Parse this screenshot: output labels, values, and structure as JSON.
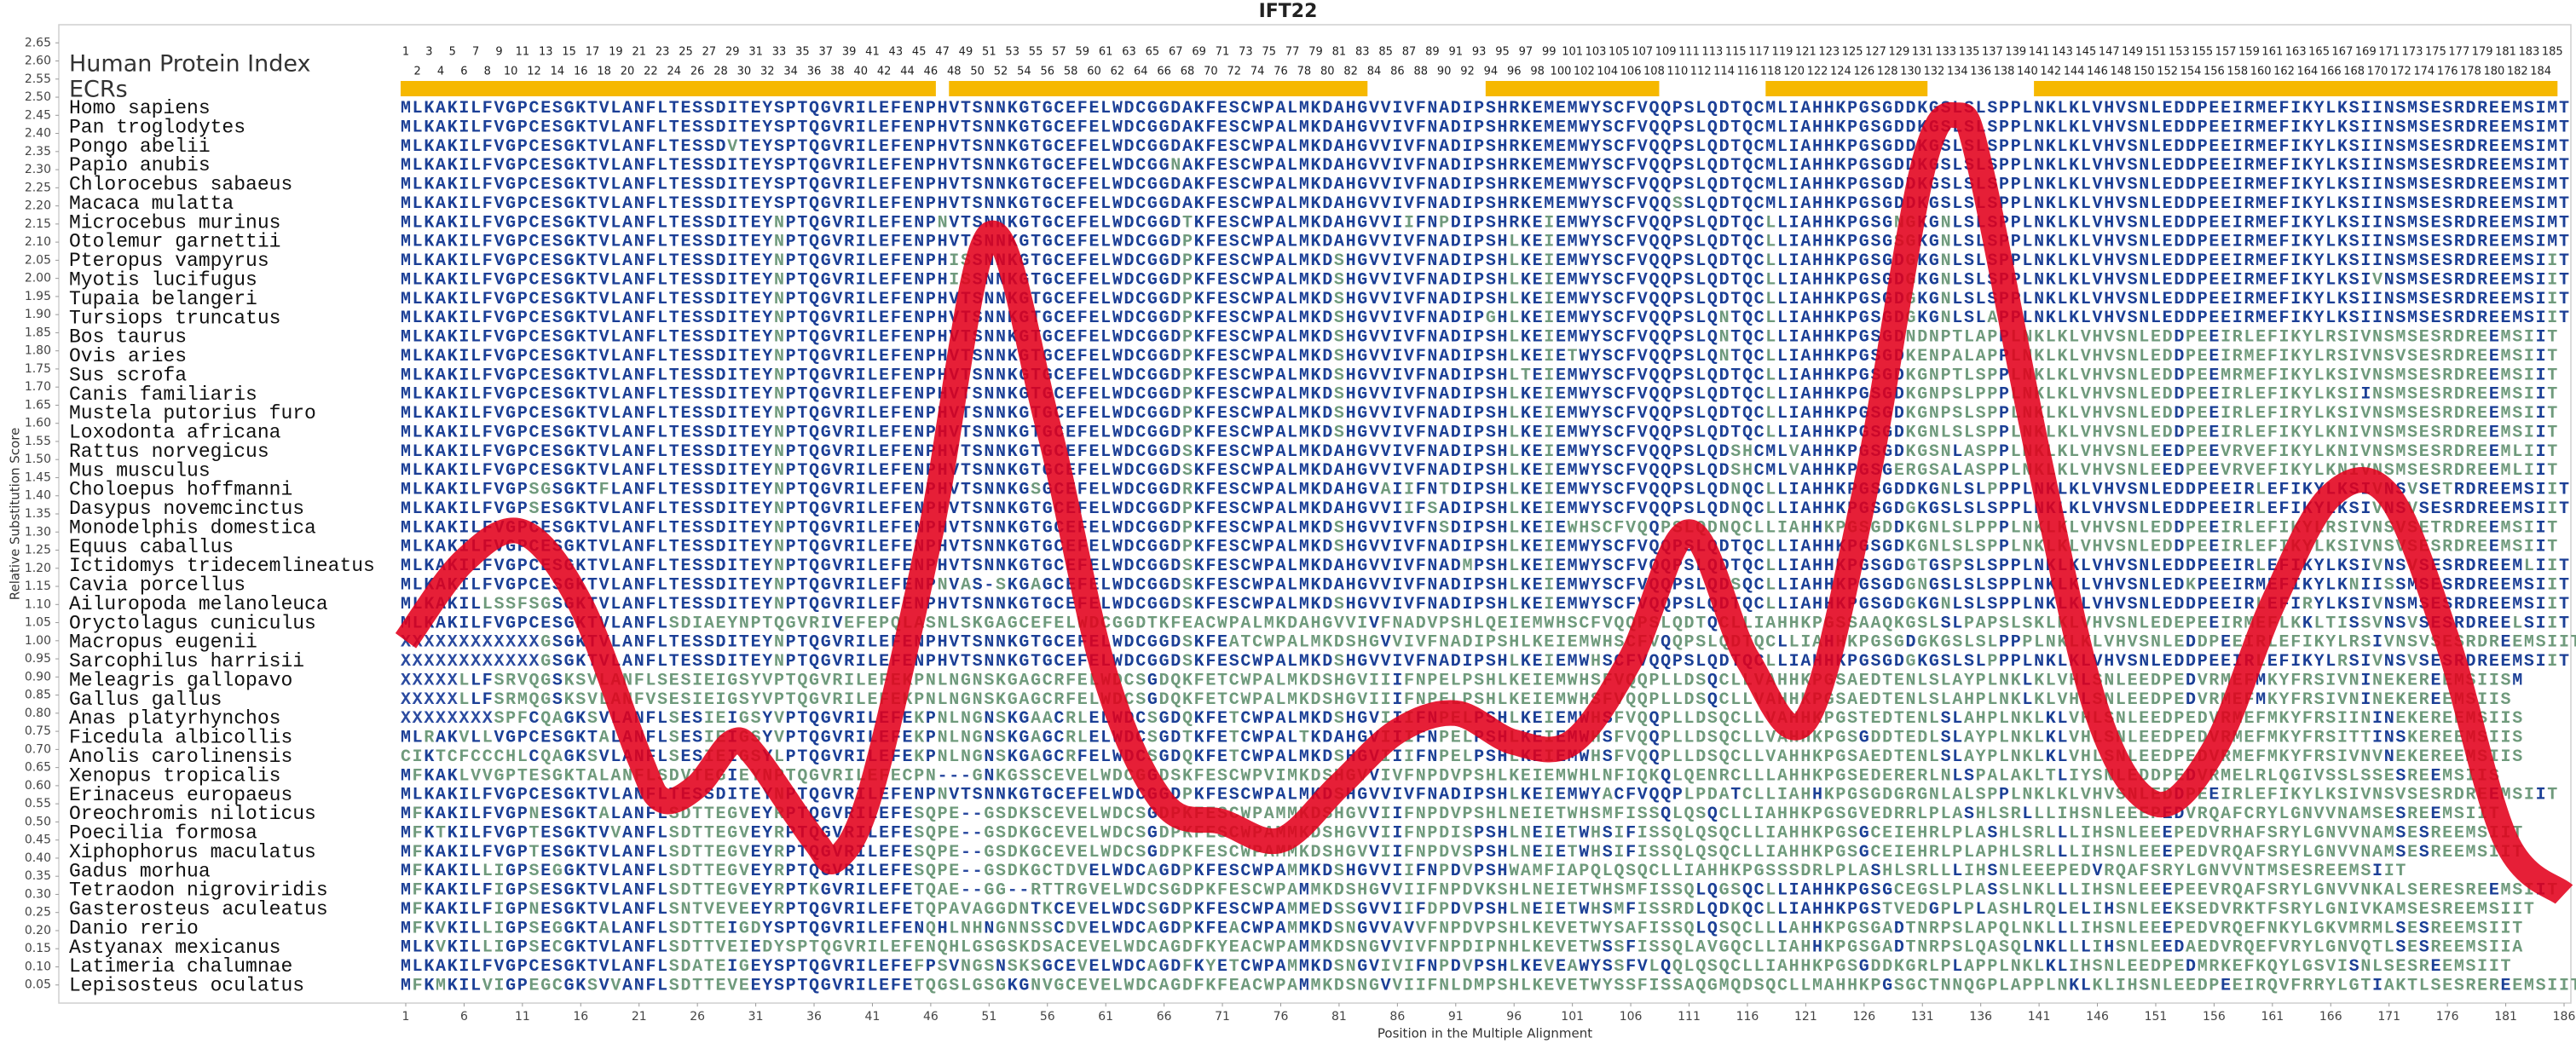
{
  "chart_data": {
    "type": "line",
    "title": "IFT22",
    "x_label": "Position in the Multiple Alignment",
    "y_label": "Relative Substitution Score",
    "index_label": "Human Protein Index",
    "ecr_label": "ECRs",
    "ecr_color": "#f6b800",
    "ecrs": [
      {
        "start": 1,
        "end": 46
      },
      {
        "start": 48,
        "end": 83
      },
      {
        "start": 94,
        "end": 108
      },
      {
        "start": 118,
        "end": 131
      },
      {
        "start": 141,
        "end": 185
      }
    ],
    "protein_index": [
      1,
      2,
      3,
      4,
      5,
      6,
      7,
      8,
      9,
      10,
      11,
      12,
      13,
      14,
      15,
      16,
      17,
      18,
      19,
      20,
      21,
      22,
      23,
      24,
      25,
      26,
      27,
      28,
      29,
      30,
      31,
      32,
      33,
      34,
      35,
      36,
      37,
      38,
      39,
      40,
      41,
      42,
      43,
      44,
      45,
      46,
      47,
      48,
      49,
      50,
      51,
      52,
      53,
      54,
      55,
      56,
      57,
      58,
      59,
      60,
      61,
      62,
      63,
      64,
      65,
      66,
      67,
      68,
      69,
      70,
      71,
      72,
      73,
      74,
      75,
      76,
      77,
      78,
      79,
      80,
      81,
      82,
      83,
      84,
      85,
      86,
      87,
      88,
      89,
      90,
      91,
      92,
      93,
      94,
      95,
      96,
      97,
      98,
      99,
      100,
      101,
      102,
      103,
      104,
      105,
      106,
      107,
      108,
      109,
      110,
      111,
      112,
      113,
      114,
      115,
      116,
      117,
      118,
      119,
      120,
      121,
      122,
      123,
      124,
      125,
      126,
      127,
      128,
      129,
      130,
      131,
      132,
      133,
      134,
      135,
      136,
      137,
      138,
      139,
      140,
      141,
      142,
      143,
      144,
      145,
      146,
      147,
      148,
      149,
      150,
      151,
      152,
      153,
      154,
      155,
      156,
      157,
      158,
      159,
      160,
      161,
      162,
      163,
      164,
      165,
      166,
      167,
      168,
      169,
      170,
      171,
      172,
      173,
      174,
      175,
      176,
      177,
      178,
      179,
      180,
      181,
      182,
      183,
      184,
      185
    ],
    "species": [
      "Homo sapiens",
      "Pan troglodytes",
      "Pongo abelii",
      "Papio anubis",
      "Chlorocebus sabaeus",
      "Macaca mulatta",
      "Microcebus murinus",
      "Otolemur garnettii",
      "Pteropus vampyrus",
      "Myotis lucifugus",
      "Tupaia belangeri",
      "Tursiops truncatus",
      "Bos taurus",
      "Ovis aries",
      "Sus scrofa",
      "Canis familiaris",
      "Mustela putorius furo",
      "Loxodonta africana",
      "Rattus norvegicus",
      "Mus musculus",
      "Choloepus hoffmanni",
      "Dasypus novemcinctus",
      "Monodelphis domestica",
      "Equus caballus",
      "Ictidomys tridecemlineatus",
      "Cavia porcellus",
      "Ailuropoda melanoleuca",
      "Oryctolagus cuniculus",
      "Macropus eugenii",
      "Sarcophilus harrisii",
      "Meleagris gallopavo",
      "Gallus gallus",
      "Anas platyrhynchos",
      "Ficedula albicollis",
      "Anolis carolinensis",
      "Xenopus tropicalis",
      "Erinaceus europaeus",
      "Oreochromis niloticus",
      "Poecilia formosa",
      "Xiphophorus maculatus",
      "Gadus morhua",
      "Tetraodon nigroviridis",
      "Gasterosteus aculeatus",
      "Danio rerio",
      "Astyanax mexicanus",
      "Latimeria chalumnae",
      "Lepisosteus oculatus"
    ],
    "sequences": [
      "MLKAKILFVGPCESGKTVLANFLTESSDITEYSPTQGVRILEFENPHVTSNNKGTGCEFELWDCGGDAKFESCWPALMKDAHGVVIVFNADIPSHRKEMEMWYSCFVQQPSLQDTQCMLIAHHKPGSGDDKGSLSLSPPLNKLKLVHVSNLEDDPEEIRMEFIKYLKSIINSMSESRDREEMSIMT",
      "MLKAKILFVGPCESGKTVLANFLTESSDITEYSPTQGVRILEFENPHVTSNNKGTGCEFELWDCGGDAKFESCWPALMKDAHGVVIVFNADIPSHRKEMEMWYSCFVQQPSLQDTQCMLIAHHKPGSGDDKGSLSLSPPLNKLKLVHVSNLEDDPEEIRMEFIKYLKSIINSMSESRDREEMSIMT",
      "MLKAKILFVGPCESGKTVLANFLTESSDVTEYSPTQGVRILEFENPHVTSNNKGTGCEFELWDCGGDAKFESCWPALMKDAHGVVIVFNADIPSHRKEMEMWYSCFVQQPSLQDTQCMLIAHHKPGSGDDKGSLSLSPPLNKLKLVHVSNLEDDPEEIRMEFIKYLKSIINSMSESRDREEMSIMT",
      "MLKAKILFVGPCESGKTVLANFLTESSDITEYSPTQGVRILEFENPHVTSNNKGTGCEFELWDCGGNAKFESCWPALMKDAHGVVIVFNADIPSHRKEMEMWYSCFVQQPSLQDTQCMLIAHHKPGSGDDKGSLSLSPPLNKLKLVHVSNLEDDPEEIRMEFIKYLKSIINSMSESRDREEMSIMT",
      "MLKAKILFVGPCESGKTVLANFLTESSDITEYSPTQGVRILEFENPHVTSNNKGTGCEFELWDCGGDAKFESCWPALMKDAHGVVIVFNADIPSHRKEMEMWYSCFVQQPSLQDTQCMLIAHHKPGSGDDKGSLSLSPPLNKLKLVHVSNLEDDPEEIRMEFIKYLKSIINSMSESRDREEMSIMT",
      "MLKAKILFVGPCESGKTVLANFLTESSDITEYSPTQGVRILEFENPHVTSNNKGTGCEFELWDCGGDAKFESCWPALMKDAHGVVIVFNADIPSHRKEMEMWYSCFVQQSSLQDTQCMLIAHHKPGSGDDKGSLSLSPPLNKLKLVHVSNLEDDPEEIRMEFIKYLKSIINSMSESRDREEMSIMT",
      "MLKAKILFVGPCESGKTVLANFLTESSDITEYNPTQGVRILEFENPNVTSNNKGTGCEFELWDCGGDTKFESCWPALMKDAHGVVIIFNPDIPSHRKEIEMWYSCFVQQPSLQDTQCLLIAHHKPGSGNGKGNLSLSPPLNKLKLVHVSNLEDDPEEIRMEFIKYLKSIINSMSESRDREEMSIMT",
      "MLKAKILFVGPCESGKTVLANFLTESSDITEYNPTQGVRILEFENPHVTSNNKGTGCEFELWDCGGDPKFESCWPALMKDAHGVVIVFNADIPSHLKEIEMWYSCFVQQPSLQDTQCLLIAHHKPGSGSGKGNLSLSPPLNKLKLVHVSNLEDDPEEIRMEFIKYLKSIINSMSESRDREEMSIMT",
      "MLKAKILFVGPCESGKTVLANFLTESSDITEYNPTQGVRILEFENPHISSNNKGTGCEFELWDCGGDPKFESCWPALMKDSHGVVIVFNADIPSHLKEIEMWYSCFVQQPSLQDTQCLLIAHHKPGSGDGKGNLSLSPPLNKLKLVHVSNLEDDPEEIRMEFIKYLKSIINSMSESRDREEMSIIT",
      "MLKAKILFVGPCESGKTVLANFLTESSDITEYNPTQGVRILEFENPHISSNNKGTGCEFELWDCGGDPKFESCWPALMKDSHGVVIVFNADIPSHLKEIEMWYSCFVQQPSLQDTQCLLIAHHKPGSGDGKGNLSLSPPLNKLKLVHVSNLEDDPEEIRMEFIKYLKSIVNSMSESRDREEMSIIT",
      "MLKAKILFVGPCESGKTVLANFLTESSDITEYNPTQGVRILEFENPHVTSNNKGTGCEFELWDCGGDPKFESCWPALMKDSHGVVIVFNADIPSHLKEIEMWYSCFVQQPSLQDTQCLLIAHHKPGSGDGKGNLSLSPPLNKLKLVHVSNLEDDPEEIRMEFIKYLKSIINSMSESRDREEMSIIT",
      "MLKAKILFVGPCESGKTVLANFLTESSDITEYNPTQGVRILEFENPHVTSNNKGTGCEFELWDCGGDPKFESCWPALMKDSHGVVIVFNADIPGHLKEIEMWYSCFVQQPSLQNTQCLLIAHHKPGSGDGKGNLSLAPPLNKLKLVHVSNLEDDPEEIRMEFIKYLKSIINSMSESRDREEMSIIT",
      "MLKAKILFVGPCESGKTVLANFLTESSDITEYNPTQGVRILEFENPHVTSNNKGTGCEFELWDCGGDPKFESCWPALMKDSHGVVIVFNADIPSHLKEIEMWYSCFVQQPSLQNTQCLLIAHHKPGSGDNDNPTLAPPLNKLKLVHVSNLEDDPEEIRLEFIKYLRSIVNSMSESRDREEMSIIT",
      "MLKAKILFVGPCESGKTVLANFLTESSDITEYNPTQGVRILEFENPHVTSNNKGTGCEFELWDCGGDPKFESCWPALMKDSHGVVIVFNADIPSHLKEIETWYSCFVQQPSLQNTQCLLIAHHKPGSGDKENPALAPPLNKLKLVHVSNLEDDPEEIRMEFIKYLRSIVNSVSESRDREEMSIIT",
      "MLKAKILFVGPCESGKTVLANFLTESSDITEYNPTQGVRILEFENPHVTSNNKGTGCEFELWDCGGDPKFESCWPALMKDSHGVVIVFNADIPSHLTEIEMWYSCFVQQPSLQDTQCLLIAHHKPGSGDKGNPTLSPPLNKLKLVHVSNLEDDPEEMRMEFIKYLKSIVNSMSESRDREEMSIIT",
      "MLKAKILFVGPCESGKTVLANFLTESSDITEYNPTQGVRILEFENPHVTSNNKGTGCEFELWDCGGDPKFESCWPALMKDSHGVVIVFNADIPSHLKEIEMWYSCFVQQPSLQDTQCLLIAHHKPGSGDKGNPSLPPPLNKLKLVHVSNLEDDPEEIRLEFIKYLKSIINSMSESRDREEMSIIT",
      "MLKAKILFVGPCESGKTVLANFLTESSDITEYNPTQGVRILEFENPHVTSNNKGTGCEFELWDCGGDPKFESCWPALMKDSHGVVIVFNADIPSHLKEIEMWYSCFVQQPSLQDTQCLLIAHHKPGSGDKGNPSLSPPLNKLKLVHVSNLEDDPEEIRLEFIRYLKSIVNSMSESRDREEMSIIT",
      "MLKAKILFVGPCESGKTVLANFLTESSDITEYNPTQGVRILEFENPHVTSNNKGTGCEFELWDCGGDPKFESCWPALMKDSHGVVIVFNADIPSHLKEIEMWYSCFVQQPSLQDTQCLLIAHHKPGSGDKGNLSLSPPLNKLKLVHVSNLEDDPEEIRLEFIKYLKNIVNSMSESRDREEMSIIT",
      "MLKAKILFVGPCESGKTVLANFLTESSDITEYNPTQGVRILEFENPHVTSNNKGTGCEFELWDCGGDSKFESCWPALMKDAHGVVIVFNADIPSHLKEIEMWYSCFVQQPSLQDSHCMLVAHHKPGSGDKGSNLASPPLNKLKLVHVSNLEEDPEEVRVEFIKYLKNIVNSMSESRDREEMLIIT",
      "MLKAKILFVGPCESGKTVLANFLTESSDITEYNPTQGVRILEFENPHVTSNNKGTGCEFELWDCGGDSKFESCWPALMKDAHGVVIVFNADIPSHLKEIEMWYSCFVQQPSLQDSHCMLVAHHKPGSGERGSALASPPLNKLKLVHVSNLEEDPEEVRVEFIKYLKNIVNSMSESRDREEMLIIT",
      "MLKAKILFVGPSGSGKTFLANFLTESSDITEYNPTQGVRILEFENPHVTSNNKGSGCEFELWDCGGDRKFESCWPALMKDAHGVAIIFNTDIPSHLKEIEMWYSCFVQQPSLQDNQCLLIAHHKPGSGDDKGNLSLPPPLNKLKLVHVSNLEDDPEEIRLEFIKYLKSIVNSVSETRDREEMSIIT",
      "MLKAKILFVGPSESGKTVLANFLTESSDITEYNPTQGVRILEFENPHVTSNNKGTGCEFELWDCGGDPKFESCWPALMKDAHGVVIIFSADIPSHLKEIEMWYSCFVQQPSLQDNQCLLIAHHKPGSGDGKGSLSLSPPLNKLKLVHVSNLEDDPEEIRLEFIKYLKSIVNSVSESRDREEMSIIT",
      "MLKAKILFVGPCESGKTVLANFLTESSDITEYNPTQGVRILEFENPHVTSNNKGTGCEFELWDCGGDPKFESCWPALMKDSHGVVIVFNSDIPSHLKEIEWHSCFVQQPSLQDNQCLLIAHHKPGSGDDKGNLSLPPPLNKLKLVHVSNLEDDPEEIRLEFIKYLRSIVNSVSETRDREEMSIIT",
      "MLKAKILFVGPCESGKTVLANFLTESSDITEYNPTQGVRILEFENPHVTSNNKGTGCEFELWDCGGDPKFESCWPALMKDSHGVVIVFNADIPSHLKEIEMWYSCFVQQPSLQDTQCLLIAHHKPGSGDKGNLSLSPPLNKLKLVHVSNLEDDPEEIRLEFIKYLKSIVNSVSESRDREEMSIIT",
      "MLKAKILFVGPCESGKTVLANFLTESSDITEYNPTQGVRILEFENPHVTSNNKGTGCEFELWDCGGDSKFESCWPALMKDAHGVVIVFNADMPSHLKEIEMWYSCFVQQPSLQDTQCLLIAHHKPGSGDGTGSPSLSPPLNKLKLVHVSNLEDDPEEIRLEFIKYLKSIVNSVSESRDREEMLIIT",
      "MLKAKILFVGPCESGKTVLANFLTESSDITEYNPTQGVRILEFENPNVAS-SKGAGCEFELWDCGGDSKFESCWPALMKDAHGVVIVFNADIPSHLKEIEMWYSCFVQQPSLQDSQCLLIAHHKPGSGDGNGSLSLSPPLNKLKLVHVSNLEDKPEEIRMEFIKYLKNIISSMSESRDREEMSIIT",
      "MLKAKILLSSFSGSGKTVLANFLTESSDITEYNPTQGVRILEFENPHVTSNNKGTGCEFELWDCGGDSKFESCWPALMKDSHGVVIVFNADIPSHLKEIEMWYSCFVQQPSLQDTQCLLIAHHKPGSGDGKGNLSLSPPLNKLKLVHVSNLEDDPEEIRLEFIRYLKSIVNSMSESRDREEMSIIT",
      "MLKAKILFVGPCESGKTVLANFLSDIAEYNPTQGVRIVEFEPQLASNLSKGAGCEFELWDCGGDTKFEACWPALMKDAHGVVIVFNADVPSHLQEIEMWHSCFVQQPSLQDTQCLLIAHHKPGSSAAQKGSLSLPAPSLSKLKLVHVSNLEDEPEEIRMEFLKKLTISSVNSVSESRDREELSIIT",
      "XXXXXXXXXXXXGSGKTVLANFLTESSDITEYNPTQGVRILEFENPHVTSNNKGTGCEFELWDCGGDSKFEATCWPALMKDSHGVVIVFNADIPSHLKEIEMWHSCFVQQPSLQDTQCLLIAHHKPGSGDGKGSLSLPPPLNKLKLVHVSNLEDDPEEIRLEFIKYLRSIVNSVSESRDREEMSIIT",
      "XXXXXXXXXXXXGSGKTVLANFLTESSDITEYNPTQGVRILEFENPHVTSNNKGTGCEFELWDCGGDSKFESCWPALMKDSHGVVIVFNADIPSHLKEIEMWHSCFVQQPSLQDTQCLLIAHHKPGSGDGKGSLSLPPPLNKLKLVHVSNLEDDPEEIRLEFIKYLRSIVNSVSESRDREEMSIIT",
      "XXXXXLLFSRVQGSKSVLANFLSESIEIGSYVPTQGVRILEFEKPNLNGNSKGAGCRFELWDCSGDQKFETCWPALMKDSHGVIIIFNPELPSHLKEIEMWHSFVQQPLLDSQCLLVAHHKPGSAEDTENLSLAYPLNKLKLVHLSNLEEDPEDVRMEFMKYFRSIVNINEKEREEMSIISM",
      "XXXXXLLFSRMQGSKSVLANFVSESIEIGSYVPTQGVRILEFEKPNLNGNSKGAGCRFELWDCSGDQKFETCWPALMKDSHGVIIIFNPELPSHLKEIEMWHSFVQQPLLDSQCLLVAHHKPGSAEDTENLSLAHPLNKLKLVHLSNLEEDPEDVRMEFMKYFRSIVNINEKEREEMSIIS",
      "XXXXXXXXSPFCQAGKSVLANFLSESIEIGSYVPTQGVRILEFEKPNLNGNSKGAACRLELWDCSGDQKFETCWPALMKDSHGVIIIFNPELPSHLKEIEMWHSFVQQPLLDSQCLLVAHHKPGSTEDTENLSLAHPLNKLKLVHLSNLEEDPEDVRMEFMKYFRSIININEKEREEMSIIS",
      "MLRAKVLLVGPCESGKTALANFLSESIEIGSYVPTQGVRILEFEKPNLNGNSKGAGCRLELWDCSGDTKFETCWPALTKDAHGVIIIFNPELPSHLKEIEMWHSFVQQPLLDSQCLLVAHHKPGSGDDTEDLSLAYPLNKLKLVHLSNLEEDPEDVRMEFMKYFRSITTINSKEREEMSIIS",
      "CIKTCFCCCHLCQAGKSVLANFLSESIEIGSYLPTQGVRILEFEKPNLNGNSKGAGCRFELWDCSGDQKFETCWPALMKDSHGVIIIFNPELPSHLKEIEMWHSFVQQPLLDSQCLLVAHHKPGSAEDTENLSLAYPLNKLKLVHLSNLEEDPEDVRMEFMKYFRSIVNVNEKEREEMSIIS",
      "MFKAKLVVGPTESGKTALANFLSDVTEGIEYNPTQGVRILEFECPN---GNKGSSCEVELWDCGGDSKFESCWPVIMKDSHGVVIVFNPDVPSHLKEIEMWHLNFIQKQLQENRCLLLAHHKPGSEDERERLNLSPALAKLTLIYSNLEDDPEDVRMELRLQGIVSSLSSESREEMSIIS",
      "MLKAKILFVGPCESGKTVLANFLTESSDITEYNPTQGVRILEFENPNVTSNNKGTGCEFELWDCGGDPKFESCWPALMKDSHGVVIVFNADIPSHLKEIEMWYACFVQQPLPDATCLLIAHHKPGSGDGRGNLALSPPLNKLKLVHVSNLEDDPEEIRLEFIKYLKSIVNSVSESRDREEMSIIT",
      "MFKAKILFVGPNESGKTALANFLSDTTEGVEYRPTQGVRILEFESQPE--GSDKSCEVELWDCSGDPKFESCWPAMMKDSHGVVIIFNPDVPSHLNEIETWHSMFISSQLQSQCLLIAHHKPGSGVEDRRLPLASHLSRLLLIHSNLEEEPEDVRQAFCRYLGNVVNAMSESREEMSIIT",
      "MFKTKILFVGPTESGKTVVANFLSDTTEGVEYRPTQGVRILEFESQPE--GSDKGCEVELWDCSGDPKFESCWPAMMKDSHGVVIIFNPDISPSHLNEIETWHSIFISSQLQSQCLLIAHHKPGSGCEIEHRLPLASHLSRLLLIHSNLEEEPEDVRHAFSRYLGNVVNAMSESREEMSIIT",
      "MFKAKILFVGPTESGKTVLANFLSDTTEGVEYRPTQGVRILEFESQPE--GSDKGCEVELWDCSGDPKFESCWPAMMKDSHGVVIIFNPDVSPSHLNEIETWHSIFISSQLQSQCLLIAHHKPGSGCEIEHRLPLAPHLSRLLLIHSNLEEEPEDVRQAFSRYLGNVVNAMSESREEMSIIT",
      "MFKAKILLIGPSEGGKTVLANFLSDTTEGVEYRPTQGVRILEFESQPE--GSDKGCTDVELWDCAGDPKFESCWPAMMKDSHGVVIIFNPDVPSHWAMFIAPQLQSQCLLIAHHKPGSSSDRLPLASHLSRLLLIHSNLEEEPEDVRQAFSRYLGNVVNTMSESREEMSIIT",
      "MFKAKILFIGPSESGKTVLANFLSDTTEGVEYRPTKGVRILEFETQAE--GG--RTTRGVELWDCSGDPKFESCWPAMMKDSHGVVIIFNPDVKSHLNEIETWHSMFISSQLQGSQCLLIAHHKPGSGCEGSLPLASSLNKLLLIHSNLEEEPEEVRQAFSRYLGNVVNKALSERESREEMSIIT",
      "MFKAKILFIGPNESGKTVLANFLSNTVEVEEYRPTQGVRILEFETQPAVAGGDNTKCEVELWDCSGDPKFESCWPAMMEDSSGVVIIFDPDVPSHLNEIETWHSMFISSRDLQDKQCLLIAHHKPGSTVEDGPLPLASHLRQLELIHSNLEEKSEDVRKTFSRYLGNIVKAMSESREEMSIIT",
      "MFKVKILLIGPSEGGKTALANFLSDTTEIGDYSPTQGVRILEFENQHLNHNGNNSSCDVELWDCAGDPKFEACWPAMMKDSNGVVAVVFNPDVPSHLKEVETWYSAFISSQLQSQCLLLAHHKPGSGADTNRPSLAPQLNKLLLIHSNLEEEPEDVRQEFNKYLGKVMRMLSESREEMSIIT",
      "MLKVKILLIGPSECGKTVLANFLSDTTVEIEDYSPTQGVRILEFENQHLGSGSKDSACEVELWDCAGDFKYEACWPAMMKDSNGVVIVFNPDIPNHLKEVETWSSFISSQLAVGQCLLIAHHKPGSGADTNRPSLQASQLNKLLLIHSNLEEDAEDVRQEFVRYLGNVQTLSESREEMSIIA",
      "MLKAKILFVGPCESGKTVLANFLSDATEIGEYSPTQGVRILEFEFPSVNGSNSKSGCEVELWDCAGDFKYETCWPAMMKDSNGVIVIFNPDVPSHLKEVEAWYSSFVLQQLQSQCLLIAHHKPGSGDDKGRLPLAPPLNKLKLIHSNLEEDPEDMRKEFKQYLGSVISNLSESREEMSIIT",
      "MFKMKILVIGPEGCGKSVVANFLSDTTEVEEYSPTQGVRILEFETQGSLGSGKGNVGCEVELWDCAGDFKFEACWPAMMKDSNGVVIIFNLDMPSHLKEVETWYSSFISSAQGMQDSQCLLMAHHKPGSGCTNNQGPLAPPLNKLKLIHSNLEEDPEEIRQVFRRYLGTIAKTLSESREREEMSIIT"
    ],
    "x": [
      1,
      6,
      11,
      16,
      21,
      23,
      26,
      29,
      31,
      36,
      38,
      41,
      46,
      51,
      56,
      61,
      66,
      71,
      76,
      81,
      86,
      91,
      96,
      101,
      106,
      111,
      116,
      121,
      126,
      131,
      134,
      136,
      141,
      146,
      151,
      156,
      161,
      166,
      171,
      176,
      181,
      186
    ],
    "values": [
      1.0,
      1.22,
      1.3,
      1.1,
      0.68,
      0.56,
      0.6,
      0.72,
      0.68,
      0.45,
      0.4,
      0.6,
      1.3,
      2.12,
      1.6,
      0.9,
      0.55,
      0.5,
      0.45,
      0.6,
      0.75,
      0.8,
      0.72,
      0.72,
      0.95,
      1.3,
      0.95,
      0.78,
      1.4,
      2.3,
      2.45,
      2.3,
      1.5,
      0.8,
      0.55,
      0.7,
      1.1,
      1.4,
      1.4,
      1.0,
      0.45,
      0.3
    ],
    "color": "#e3001b",
    "xlim": [
      1,
      186
    ],
    "ylim": [
      0,
      2.7
    ],
    "xticks": [
      1,
      6,
      11,
      16,
      21,
      26,
      31,
      36,
      41,
      46,
      51,
      56,
      61,
      66,
      71,
      76,
      81,
      86,
      91,
      96,
      101,
      106,
      111,
      116,
      121,
      126,
      131,
      136,
      141,
      146,
      151,
      156,
      161,
      166,
      171,
      176,
      181,
      186
    ],
    "yticks": [
      0.05,
      {
        "value": 0.1,
        "label": "0.10"
      },
      0.15,
      {
        "value": 0.2,
        "label": "0.20"
      },
      0.25,
      {
        "value": 0.3,
        "label": "0.30"
      },
      0.35,
      {
        "value": 0.4,
        "label": "0.40"
      },
      0.45,
      {
        "value": 0.5,
        "label": "0.50"
      },
      0.55,
      {
        "value": 0.6,
        "label": "0.60"
      },
      0.65,
      {
        "value": 0.7,
        "label": "0.70"
      },
      0.75,
      {
        "value": 0.8,
        "label": "0.80"
      },
      0.85,
      {
        "value": 0.9,
        "label": "0.90"
      },
      0.95,
      {
        "value": 1.0,
        "label": "1.00"
      },
      1.05,
      {
        "value": 1.1,
        "label": "1.10"
      },
      1.15,
      {
        "value": 1.2,
        "label": "1.20"
      },
      1.25,
      {
        "value": 1.3,
        "label": "1.30"
      },
      1.35,
      {
        "value": 1.4,
        "label": "1.40"
      },
      1.45,
      {
        "value": 1.5,
        "label": "1.50"
      },
      1.55,
      {
        "value": 1.6,
        "label": "1.60"
      },
      1.65,
      {
        "value": 1.7,
        "label": "1.70"
      },
      1.75,
      {
        "value": 1.8,
        "label": "1.80"
      },
      1.85,
      {
        "value": 1.9,
        "label": "1.90"
      },
      1.95,
      {
        "value": 2.0,
        "label": "2.00"
      },
      2.05,
      {
        "value": 2.1,
        "label": "2.10"
      },
      2.15,
      {
        "value": 2.2,
        "label": "2.20"
      },
      2.25,
      {
        "value": 2.3,
        "label": "2.30"
      },
      2.35,
      {
        "value": 2.4,
        "label": "2.40"
      },
      2.45,
      {
        "value": 2.5,
        "label": "2.50"
      },
      2.55,
      {
        "value": 2.6,
        "label": "2.60"
      },
      2.65
    ]
  }
}
